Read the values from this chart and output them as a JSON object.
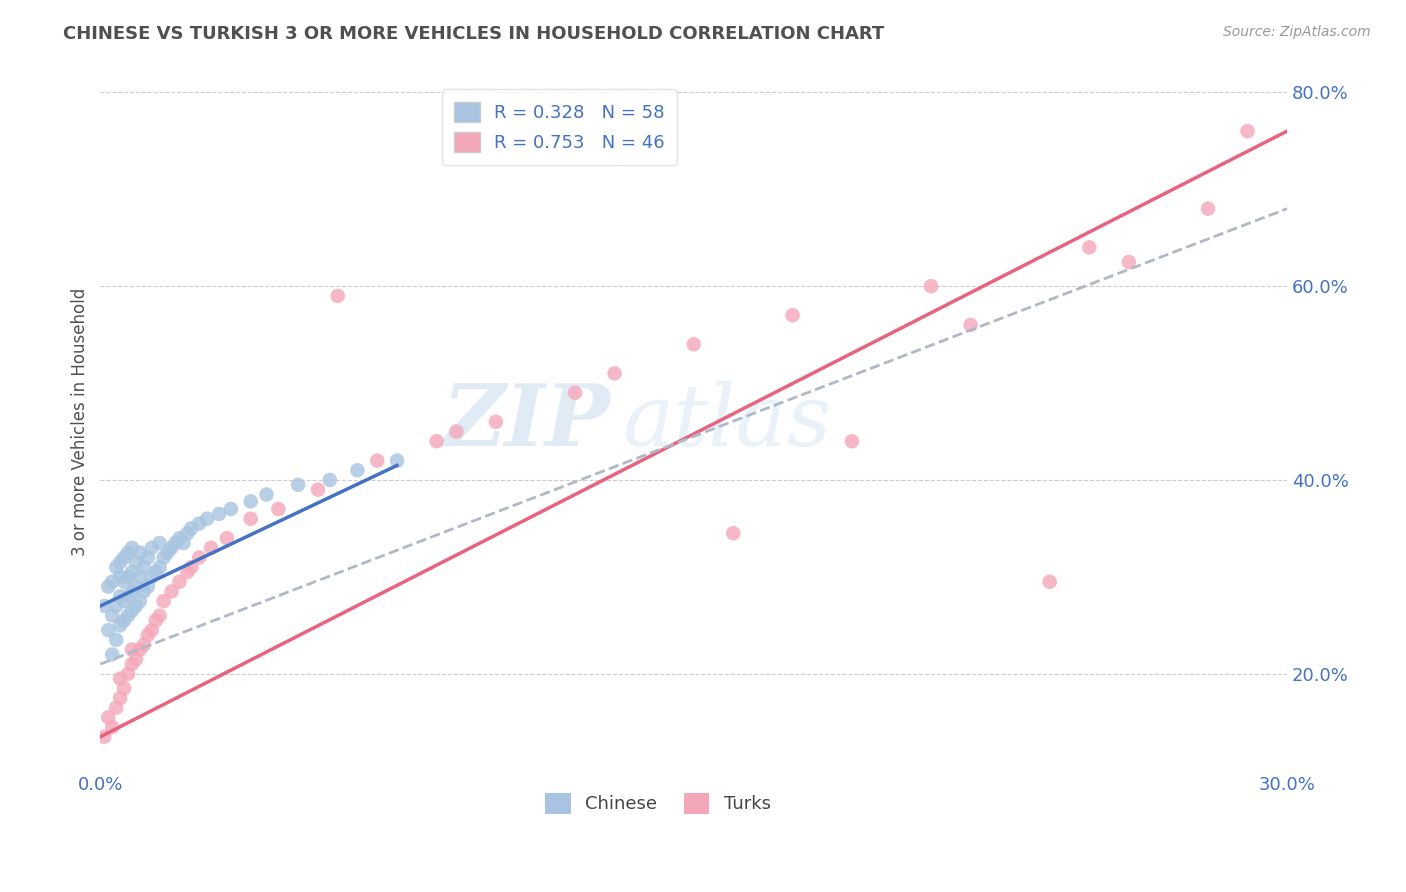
{
  "title": "CHINESE VS TURKISH 3 OR MORE VEHICLES IN HOUSEHOLD CORRELATION CHART",
  "source": "Source: ZipAtlas.com",
  "ylabel": "3 or more Vehicles in Household",
  "xmin": 0.0,
  "xmax": 0.3,
  "ymin": 0.1,
  "ymax": 0.82,
  "chinese_R": 0.328,
  "chinese_N": 58,
  "turkish_R": 0.753,
  "turkish_N": 46,
  "legend_label1": "Chinese",
  "legend_label2": "Turks",
  "watermark_zip": "ZIP",
  "watermark_atlas": "atlas",
  "chinese_color": "#a8c4e0",
  "chinese_line_color": "#4472c4",
  "turkish_color": "#f4a7b9",
  "turkish_line_color": "#e8637e",
  "dashed_line_color": "#b0b8c8",
  "background_color": "#ffffff",
  "grid_color": "#cccccc",
  "title_color": "#505050",
  "right_tick_color": "#4472c4",
  "chinese_scatter_x": [
    0.001,
    0.002,
    0.002,
    0.003,
    0.003,
    0.003,
    0.004,
    0.004,
    0.004,
    0.005,
    0.005,
    0.005,
    0.005,
    0.006,
    0.006,
    0.006,
    0.006,
    0.007,
    0.007,
    0.007,
    0.007,
    0.008,
    0.008,
    0.008,
    0.008,
    0.009,
    0.009,
    0.009,
    0.01,
    0.01,
    0.01,
    0.011,
    0.011,
    0.012,
    0.012,
    0.013,
    0.013,
    0.014,
    0.015,
    0.015,
    0.016,
    0.017,
    0.018,
    0.019,
    0.02,
    0.021,
    0.022,
    0.023,
    0.025,
    0.027,
    0.03,
    0.033,
    0.038,
    0.042,
    0.05,
    0.058,
    0.065,
    0.075
  ],
  "chinese_scatter_y": [
    0.27,
    0.245,
    0.29,
    0.22,
    0.26,
    0.295,
    0.235,
    0.27,
    0.31,
    0.25,
    0.28,
    0.3,
    0.315,
    0.255,
    0.275,
    0.295,
    0.32,
    0.26,
    0.28,
    0.3,
    0.325,
    0.265,
    0.285,
    0.305,
    0.33,
    0.27,
    0.29,
    0.315,
    0.275,
    0.3,
    0.325,
    0.285,
    0.31,
    0.29,
    0.32,
    0.3,
    0.33,
    0.305,
    0.31,
    0.335,
    0.32,
    0.325,
    0.33,
    0.335,
    0.34,
    0.335,
    0.345,
    0.35,
    0.355,
    0.36,
    0.365,
    0.37,
    0.378,
    0.385,
    0.395,
    0.4,
    0.41,
    0.42
  ],
  "chinese_line_x": [
    0.0,
    0.075
  ],
  "chinese_line_y": [
    0.27,
    0.415
  ],
  "turkish_scatter_x": [
    0.001,
    0.002,
    0.003,
    0.004,
    0.005,
    0.005,
    0.006,
    0.007,
    0.008,
    0.008,
    0.009,
    0.01,
    0.011,
    0.012,
    0.013,
    0.014,
    0.015,
    0.016,
    0.018,
    0.02,
    0.022,
    0.023,
    0.025,
    0.028,
    0.032,
    0.038,
    0.045,
    0.055,
    0.07,
    0.085,
    0.1,
    0.12,
    0.15,
    0.175,
    0.21,
    0.25,
    0.28,
    0.06,
    0.09,
    0.13,
    0.16,
    0.19,
    0.22,
    0.24,
    0.26,
    0.29
  ],
  "turkish_scatter_y": [
    0.135,
    0.155,
    0.145,
    0.165,
    0.175,
    0.195,
    0.185,
    0.2,
    0.21,
    0.225,
    0.215,
    0.225,
    0.23,
    0.24,
    0.245,
    0.255,
    0.26,
    0.275,
    0.285,
    0.295,
    0.305,
    0.31,
    0.32,
    0.33,
    0.34,
    0.36,
    0.37,
    0.39,
    0.42,
    0.44,
    0.46,
    0.49,
    0.54,
    0.57,
    0.6,
    0.64,
    0.68,
    0.59,
    0.45,
    0.51,
    0.345,
    0.44,
    0.56,
    0.295,
    0.625,
    0.76
  ],
  "turkish_line_x": [
    0.0,
    0.3
  ],
  "turkish_line_y": [
    0.135,
    0.76
  ],
  "dashed_line_x": [
    0.0,
    0.3
  ],
  "dashed_line_y": [
    0.21,
    0.68
  ]
}
